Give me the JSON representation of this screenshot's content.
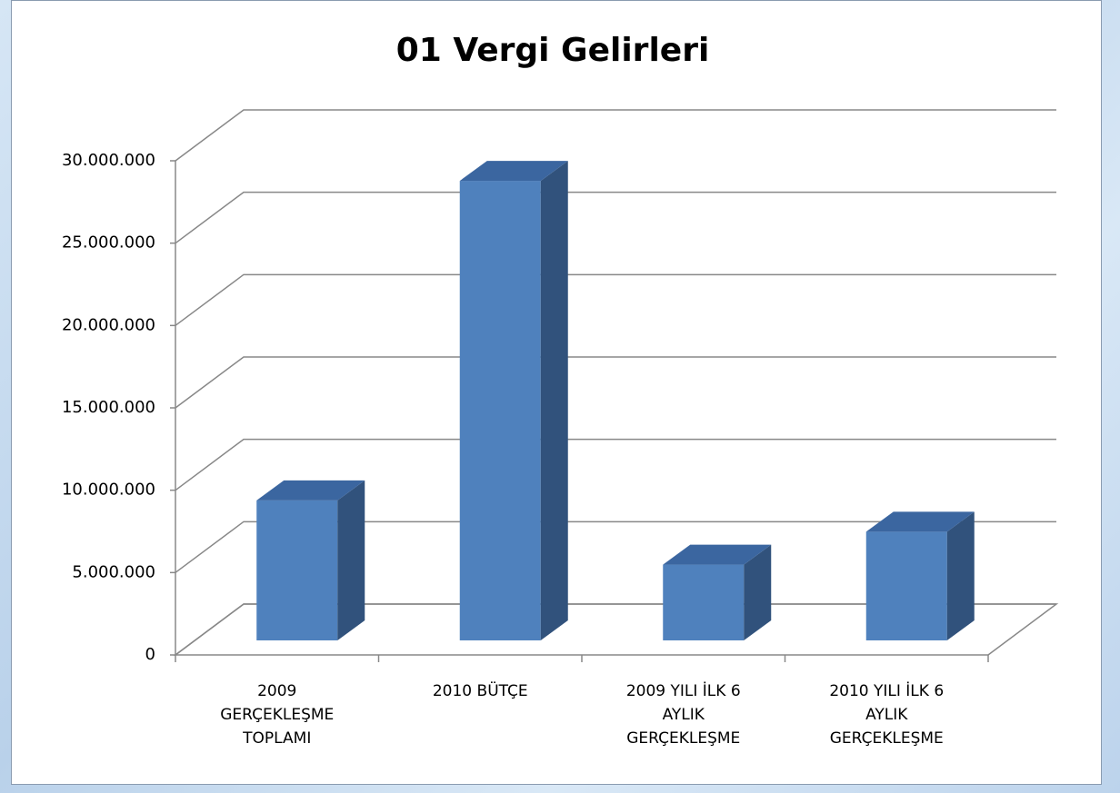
{
  "chart_data": {
    "type": "bar3d",
    "title": "01 Vergi Gelirleri",
    "categories": [
      "2009\nGERÇEKLEŞME\nTOPLAMI",
      "2010 BÜTÇE",
      "2009 YILI İLK 6\nAYLIK\nGERÇEKLEŞME",
      "2010 YILI İLK 6\nAYLIK\nGERÇEKLEŞME"
    ],
    "values": [
      8500000,
      27900000,
      4600000,
      6600000
    ],
    "color": "#4f81bd",
    "ylim": [
      0,
      30000000
    ],
    "yticks": [
      0,
      {
        "value": 5000000,
        "label": "5.000.000"
      },
      {
        "value": 10000000,
        "label": "10.000.000"
      },
      {
        "value": 15000000,
        "label": "15.000.000"
      },
      {
        "value": 20000000,
        "label": "20.000.000"
      },
      {
        "value": 25000000,
        "label": "25.000.000"
      },
      {
        "value": 30000000,
        "label": "30.000.000"
      }
    ],
    "grid": true
  }
}
